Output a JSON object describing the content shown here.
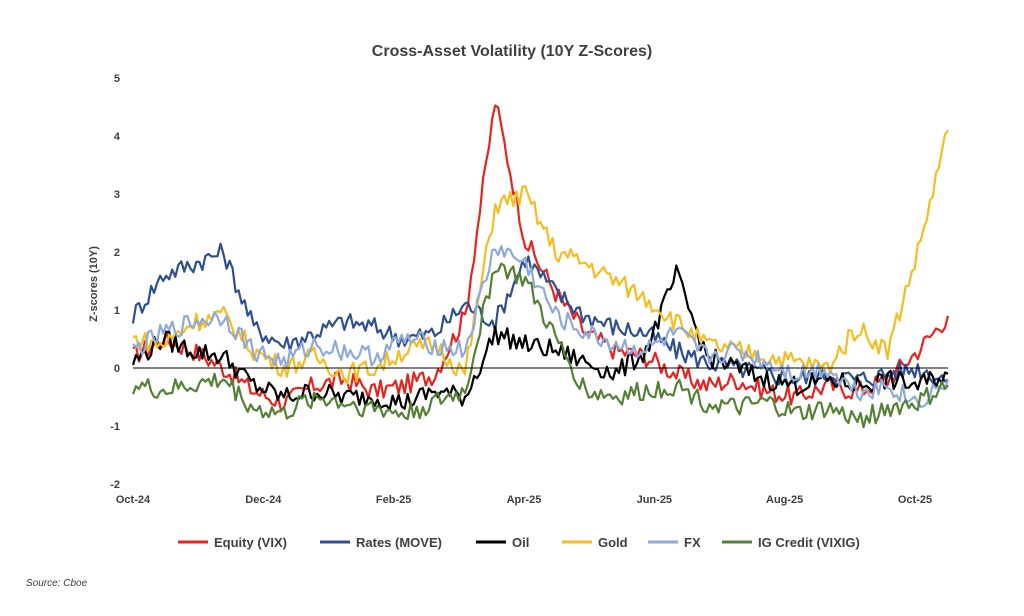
{
  "chart_data": {
    "type": "line",
    "title": "Cross-Asset Volatility (10Y Z-Scores)",
    "ylabel": "Z-scores (10Y)",
    "xlabel": "",
    "ylim": [
      -2,
      5
    ],
    "yticks": [
      5,
      4,
      3,
      2,
      1,
      0,
      -1,
      -2
    ],
    "x_labels": [
      "Oct-24",
      "Dec-24",
      "Feb-25",
      "Apr-25",
      "Jun-25",
      "Aug-25",
      "Oct-25"
    ],
    "x": [
      "2024-10",
      "2024-10b",
      "2024-11",
      "2024-11b",
      "2024-12",
      "2024-12b",
      "2025-01",
      "2025-01b",
      "2025-02",
      "2025-02b",
      "2025-03",
      "2025-03b",
      "2025-04",
      "2025-04b",
      "2025-04c",
      "2025-05",
      "2025-05b",
      "2025-06",
      "2025-06b",
      "2025-07",
      "2025-07b",
      "2025-08",
      "2025-08b",
      "2025-09",
      "2025-09b",
      "2025-10",
      "2025-10b",
      "2025-10c"
    ],
    "series": [
      {
        "name": "Equity (VIX)",
        "color": "#e8231f",
        "values": [
          0.2,
          0.5,
          0.3,
          0.0,
          -0.4,
          -0.6,
          -0.3,
          -0.2,
          -0.4,
          -0.3,
          -0.1,
          0.9,
          4.6,
          2.2,
          1.3,
          0.6,
          0.3,
          0.2,
          -0.1,
          -0.3,
          -0.2,
          -0.4,
          -0.5,
          -0.3,
          -0.4,
          -0.2,
          0.3,
          0.9
        ]
      },
      {
        "name": "Rates (MOVE)",
        "color": "#2f4f94",
        "values": [
          0.9,
          1.6,
          1.8,
          2.0,
          0.7,
          0.4,
          0.6,
          0.8,
          0.7,
          0.5,
          0.6,
          1.1,
          0.8,
          1.9,
          1.3,
          0.9,
          0.7,
          0.6,
          0.3,
          0.1,
          0.0,
          -0.1,
          -0.2,
          -0.1,
          -0.2,
          -0.1,
          0.0,
          -0.2
        ]
      },
      {
        "name": "Oil",
        "color": "#000000",
        "values": [
          0.1,
          0.5,
          0.3,
          0.2,
          -0.3,
          -0.5,
          -0.4,
          -0.5,
          -0.5,
          -0.6,
          -0.4,
          -0.5,
          0.6,
          0.4,
          0.3,
          0.1,
          -0.1,
          0.3,
          1.6,
          0.2,
          0.0,
          -0.2,
          -0.3,
          -0.2,
          -0.3,
          -0.2,
          -0.3,
          -0.1
        ]
      },
      {
        "name": "Gold",
        "color": "#f5bd1f",
        "values": [
          0.5,
          0.4,
          0.8,
          0.9,
          0.3,
          0.0,
          0.2,
          -0.1,
          0.0,
          0.3,
          0.4,
          -0.1,
          2.8,
          3.0,
          2.0,
          1.8,
          1.5,
          1.2,
          0.8,
          0.4,
          0.3,
          0.2,
          0.1,
          0.0,
          0.7,
          0.3,
          2.0,
          4.1
        ]
      },
      {
        "name": "FX",
        "color": "#8eaadb",
        "values": [
          0.3,
          0.6,
          0.8,
          0.9,
          0.3,
          0.1,
          0.4,
          0.3,
          0.2,
          0.5,
          0.4,
          0.3,
          2.1,
          1.8,
          0.9,
          0.6,
          0.4,
          0.3,
          0.6,
          0.2,
          0.3,
          0.1,
          -0.1,
          0.0,
          -0.4,
          -0.3,
          -0.6,
          -0.2
        ]
      },
      {
        "name": "IG Credit (VIXIG)",
        "color": "#548235",
        "values": [
          -0.3,
          -0.4,
          -0.3,
          -0.2,
          -0.7,
          -0.8,
          -0.5,
          -0.6,
          -0.7,
          -0.8,
          -0.6,
          -0.4,
          1.8,
          1.5,
          0.5,
          -0.4,
          -0.5,
          -0.4,
          -0.3,
          -0.6,
          -0.7,
          -0.6,
          -0.8,
          -0.7,
          -0.9,
          -0.7,
          -0.6,
          -0.3
        ]
      }
    ],
    "zero_line": true,
    "grid": false,
    "legend_position": "bottom",
    "source": "Source: Cboe"
  }
}
